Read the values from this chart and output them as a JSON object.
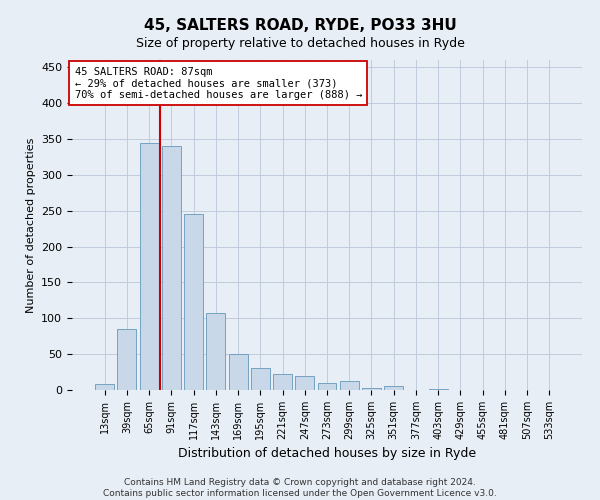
{
  "title": "45, SALTERS ROAD, RYDE, PO33 3HU",
  "subtitle": "Size of property relative to detached houses in Ryde",
  "xlabel": "Distribution of detached houses by size in Ryde",
  "ylabel": "Number of detached properties",
  "categories": [
    "13sqm",
    "39sqm",
    "65sqm",
    "91sqm",
    "117sqm",
    "143sqm",
    "169sqm",
    "195sqm",
    "221sqm",
    "247sqm",
    "273sqm",
    "299sqm",
    "325sqm",
    "351sqm",
    "377sqm",
    "403sqm",
    "429sqm",
    "455sqm",
    "481sqm",
    "507sqm",
    "533sqm"
  ],
  "values": [
    8,
    85,
    345,
    340,
    245,
    107,
    50,
    30,
    23,
    20,
    10,
    12,
    3,
    5,
    0,
    2,
    0,
    0,
    0,
    0,
    0
  ],
  "bar_color": "#c8d8e8",
  "bar_edge_color": "#6699bb",
  "vline_x": 2.5,
  "vline_color": "#cc0000",
  "annotation_text": "45 SALTERS ROAD: 87sqm\n← 29% of detached houses are smaller (373)\n70% of semi-detached houses are larger (888) →",
  "annotation_box_color": "white",
  "annotation_box_edge": "#cc0000",
  "ylim": [
    0,
    460
  ],
  "yticks": [
    0,
    50,
    100,
    150,
    200,
    250,
    300,
    350,
    400,
    450
  ],
  "grid_color": "#c0ccdd",
  "footer_line1": "Contains HM Land Registry data © Crown copyright and database right 2024.",
  "footer_line2": "Contains public sector information licensed under the Open Government Licence v3.0.",
  "bg_color": "#e8eef5",
  "plot_bg_color": "#e8eef5",
  "title_fontsize": 11,
  "subtitle_fontsize": 9,
  "ylabel_fontsize": 8,
  "xlabel_fontsize": 9,
  "tick_fontsize": 8,
  "xtick_fontsize": 7,
  "footer_fontsize": 6.5,
  "annot_fontsize": 7.5
}
